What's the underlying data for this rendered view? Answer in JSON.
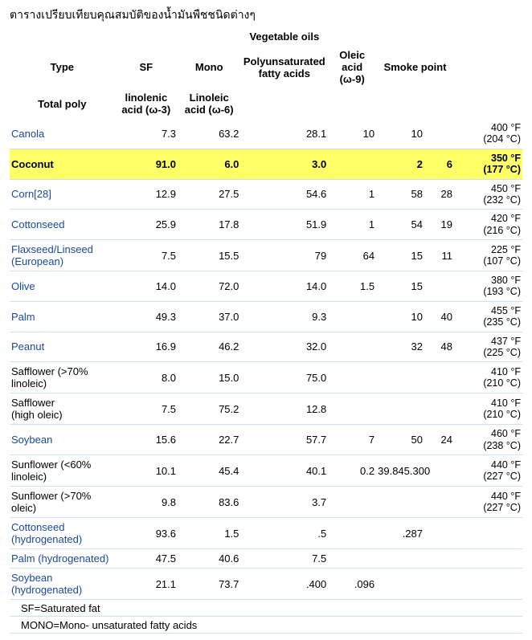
{
  "title": "ตารางเปรียบเทียบคุณสมบัติของน้ำมันพืชชนิดต่างๆ",
  "super_header": "Vegetable oils",
  "headers_row1": {
    "type": "Type",
    "sf": "SF",
    "mono": "Mono",
    "poly": "Polyunsaturated fatty acids",
    "oleic": "Oleic acid (ω-9)",
    "smoke": "Smoke point"
  },
  "headers_row2": {
    "total_poly": "Total poly",
    "linolenic": "linolenic acid (ω-3)",
    "linoleic": "Linoleic acid (ω-6)"
  },
  "rows": [
    {
      "type": "Canola",
      "link": true,
      "sf": "7.3",
      "mono": "63.2",
      "poly": "28.1",
      "oleic": "10",
      "smoke": "10",
      "tf": "400 °F",
      "tc": "(204 °C)"
    },
    {
      "type": "Coconut",
      "highlight": true,
      "sf": "91.0",
      "mono": "6.0",
      "poly": "3.0",
      "oleic": "",
      "smoke": "2",
      "extra": "6",
      "tf": "350 °F",
      "tc": "(177 °C)"
    },
    {
      "type": "Corn[28]",
      "link": true,
      "sf": "12.9",
      "mono": "27.5",
      "poly": "54.6",
      "oleic": "1",
      "smoke": "58",
      "extra": "28",
      "tf": "450 °F",
      "tc": "(232 °C)"
    },
    {
      "type": "Cottonseed",
      "link": true,
      "sf": "25.9",
      "mono": "17.8",
      "poly": "51.9",
      "oleic": "1",
      "smoke": "54",
      "extra": "19",
      "tf": "420 °F",
      "tc": "(216 °C)"
    },
    {
      "type": "Flaxseed/Linseed (European)",
      "link": true,
      "sf": "7.5",
      "mono": "15.5",
      "poly": "79",
      "oleic": "64",
      "smoke": "15",
      "extra": "11",
      "tf": "225 °F",
      "tc": "(107 °C)"
    },
    {
      "type": "Olive",
      "link": true,
      "sf": "14.0",
      "mono": "72.0",
      "poly": "14.0",
      "oleic": "1.5",
      "smoke": "15",
      "tf": "380 °F",
      "tc": "(193 °C)"
    },
    {
      "type": "Palm",
      "link": true,
      "sf": "49.3",
      "mono": "37.0",
      "poly": "9.3",
      "oleic": "",
      "smoke": "10",
      "extra": "40",
      "tf": "455 °F",
      "tc": "(235 °C)"
    },
    {
      "type": "Peanut",
      "link": true,
      "sf": "16.9",
      "mono": "46.2",
      "poly": "32.0",
      "oleic": "",
      "smoke": "32",
      "extra": "48",
      "tf": "437 °F",
      "tc": "(225 °C)"
    },
    {
      "type": "Safflower (>70% linoleic)",
      "indent": true,
      "sf": "8.0",
      "mono": "15.0",
      "poly": "75.0",
      "oleic": "",
      "smoke": "",
      "tf": "410 °F",
      "tc": "(210 °C)"
    },
    {
      "type_l1": "Safflower",
      "type_l2": "(high oleic)",
      "indent": true,
      "sf": "7.5",
      "mono": "75.2",
      "poly": "12.8",
      "oleic": "",
      "smoke": "",
      "tf": "410 °F",
      "tc": "(210 °C)"
    },
    {
      "type": "Soybean",
      "link": true,
      "sf": "15.6",
      "mono": "22.7",
      "poly": "57.7",
      "oleic": "7",
      "smoke": "50",
      "extra": "24",
      "tf": "460 °F",
      "tc": "(238 °C)"
    },
    {
      "type": "Sunflower (<60% linoleic)",
      "indent": true,
      "sf": "10.1",
      "mono": "45.4",
      "poly": "40.1",
      "oleic": "0.2",
      "smoke": "39.845.300",
      "tf": "440 °F",
      "tc": "(227 °C)"
    },
    {
      "type": "Sunflower (>70% oleic)",
      "indent": true,
      "sf": "9.8",
      "mono": "83.6",
      "poly": "3.7",
      "oleic": "",
      "smoke": "",
      "tf": "440 °F",
      "tc": "(227 °C)"
    },
    {
      "type": "Cottonseed (hydrogenated)",
      "link": true,
      "sf": "93.6",
      "mono": "1.5",
      "poly": ".5",
      "oleic": "",
      "smoke": ".287"
    },
    {
      "type": "Palm (hydrogenated)",
      "link": true,
      "sf": "47.5",
      "mono": "40.6",
      "poly": "7.5",
      "oleic": "",
      "smoke": ""
    },
    {
      "type": "Soybean (hydrogenated)",
      "link": true,
      "sf": "21.1",
      "mono": "73.7",
      "poly": ".400",
      "oleic": ".096",
      "smoke": ""
    }
  ],
  "footnotes": [
    "SF=Saturated fat",
    "MONO=Mono- unsaturated fatty acids"
  ]
}
